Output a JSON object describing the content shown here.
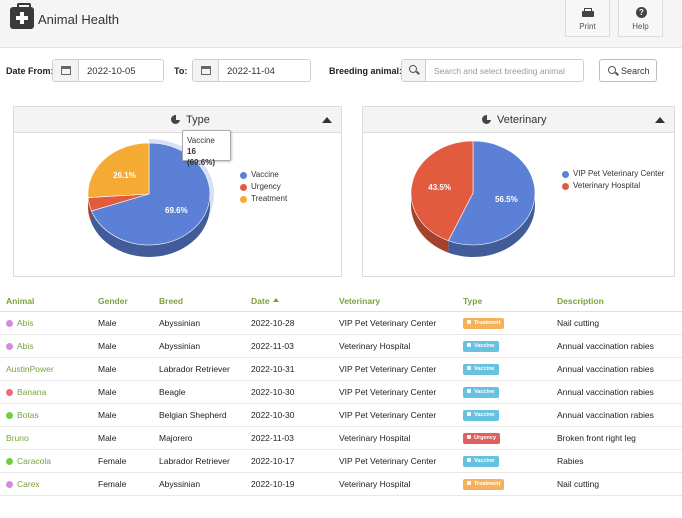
{
  "header": {
    "title": "Animal Health",
    "print_label": "Print",
    "help_label": "Help"
  },
  "filters": {
    "date_from_label": "Date From:",
    "date_from": "2022-10-05",
    "date_to_label": "To:",
    "date_to": "2022-11-04",
    "breeding_label": "Breeding animal:",
    "breeding_placeholder": "Search and select breeding animal",
    "search_label": "Search"
  },
  "type_chart": {
    "title": "Type",
    "tooltip_name": "Vaccine",
    "tooltip_value": "16 (69.6%)"
  },
  "vet_chart": {
    "title": "Veterinary"
  },
  "chart_data": [
    {
      "type": "pie",
      "title": "Type",
      "slices": [
        {
          "label": "Vaccine",
          "value": 69.6,
          "display": "69.6%",
          "color": "#5b80d5"
        },
        {
          "label": "Urgency",
          "value": 4.3,
          "display": "",
          "color": "#e35b3f"
        },
        {
          "label": "Treatment",
          "value": 26.1,
          "display": "26.1%",
          "color": "#f5aa34"
        }
      ],
      "legend": "right"
    },
    {
      "type": "pie",
      "title": "Veterinary",
      "slices": [
        {
          "label": "VIP Pet Veterinary Center",
          "value": 56.5,
          "display": "56.5%",
          "color": "#5b80d5"
        },
        {
          "label": "Veterinary Hospital",
          "value": 43.5,
          "display": "43.5%",
          "color": "#e35b3f"
        }
      ],
      "legend": "right"
    }
  ],
  "table": {
    "columns": [
      "Animal",
      "Gender",
      "Breed",
      "Date",
      "Veterinary",
      "Type",
      "Description"
    ],
    "rows": [
      {
        "animal": "Abis",
        "dot": "#d58ae0",
        "gender": "Male",
        "breed": "Abyssinian",
        "date": "2022-10-28",
        "vet": "VIP Pet Veterinary Center",
        "type": "Treatment",
        "type_color": "#f5b25a",
        "desc": "Nail cutting"
      },
      {
        "animal": "Abis",
        "dot": "#d58ae0",
        "gender": "Male",
        "breed": "Abyssinian",
        "date": "2022-11-03",
        "vet": "Veterinary Hospital",
        "type": "Vaccine",
        "type_color": "#66c2e0",
        "desc": "Annual vaccination rabies"
      },
      {
        "animal": "AustinPower",
        "dot": "",
        "gender": "Male",
        "breed": "Labrador Retriever",
        "date": "2022-10-31",
        "vet": "VIP Pet Veterinary Center",
        "type": "Vaccine",
        "type_color": "#66c2e0",
        "desc": "Annual vaccination rabies"
      },
      {
        "animal": "Banana",
        "dot": "#f06a7a",
        "gender": "Male",
        "breed": "Beagle",
        "date": "2022-10-30",
        "vet": "VIP Pet Veterinary Center",
        "type": "Vaccine",
        "type_color": "#66c2e0",
        "desc": "Annual vaccination rabies"
      },
      {
        "animal": "Botas",
        "dot": "#72cc4a",
        "gender": "Male",
        "breed": "Belgian Shepherd",
        "date": "2022-10-30",
        "vet": "VIP Pet Veterinary Center",
        "type": "Vaccine",
        "type_color": "#66c2e0",
        "desc": "Annual vaccination rabies"
      },
      {
        "animal": "Bruno",
        "dot": "",
        "gender": "Male",
        "breed": "Majorero",
        "date": "2022-11-03",
        "vet": "Veterinary Hospital",
        "type": "Urgency",
        "type_color": "#e06060",
        "desc": "Broken front right leg"
      },
      {
        "animal": "Caracola",
        "dot": "#72cc4a",
        "gender": "Female",
        "breed": "Labrador Retriever",
        "date": "2022-10-17",
        "vet": "VIP Pet Veterinary Center",
        "type": "Vaccine",
        "type_color": "#66c2e0",
        "desc": "Rabies"
      },
      {
        "animal": "Carex",
        "dot": "#d58ae0",
        "gender": "Female",
        "breed": "Abyssinian",
        "date": "2022-10-19",
        "vet": "Veterinary Hospital",
        "type": "Treatment",
        "type_color": "#f5b25a",
        "desc": "Nail cutting"
      }
    ]
  }
}
